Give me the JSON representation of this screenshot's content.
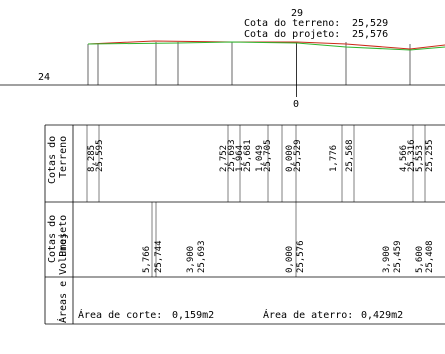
{
  "header": {
    "station": "29",
    "terrain_label": "Cota do terreno:",
    "terrain_value": "25,529",
    "project_label": "Cota do projeto:",
    "project_value": "25,576"
  },
  "axis": {
    "elevation_label": "24",
    "center_label": "0"
  },
  "rows": {
    "terreno_title_1": "Cotas do",
    "terreno_title_2": "Terreno",
    "projeto_title_1": "Cotas do",
    "projeto_title_2": "Projeto",
    "areas_title": "Áreas e Volumes"
  },
  "terreno_pairs": [
    {
      "offset": "8,285",
      "cota": "25,595"
    },
    {
      "offset": "2,752",
      "cota": "25,693"
    },
    {
      "offset": "1,964",
      "cota": "25,681"
    },
    {
      "offset": "1,049",
      "cota": "25,705"
    },
    {
      "offset": "0,000",
      "cota": "25,529"
    },
    {
      "offset": "1,776",
      "cota": "25,568"
    },
    {
      "offset": "4,566",
      "cota": "25,316"
    },
    {
      "offset": "5,553",
      "cota": "25,255"
    }
  ],
  "projeto_pairs": [
    {
      "offset": "5,766",
      "cota": "25,744"
    },
    {
      "offset": "3,900",
      "cota": "25,693"
    },
    {
      "offset": "0,000",
      "cota": "25,576"
    },
    {
      "offset": "3,900",
      "cota": "25,459"
    },
    {
      "offset": "5,600",
      "cota": "25,408"
    }
  ],
  "areas": {
    "corte_label": "Área de corte:",
    "corte_value": "0,159m2",
    "aterro_label": "Área de aterro:",
    "aterro_value": "0,429m2"
  },
  "colors": {
    "terrain_line": "#cc2a1a",
    "project_line": "#2fb52f"
  }
}
